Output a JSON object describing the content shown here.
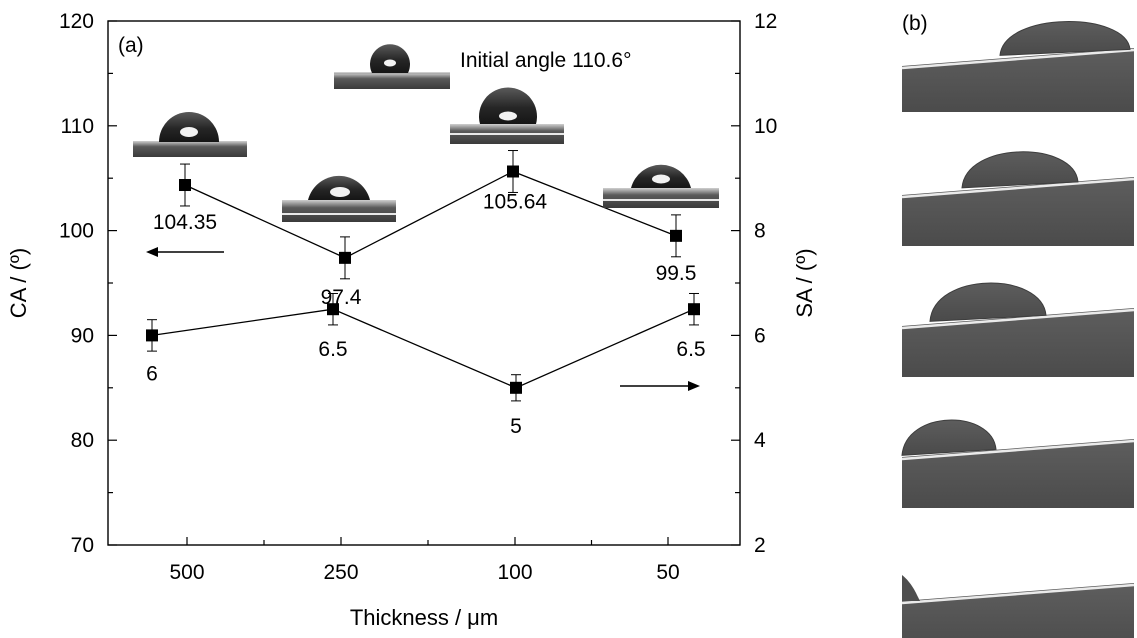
{
  "panels": {
    "a_label": "(a)",
    "b_label": "(b)"
  },
  "inset_note": "Initial angle 110.6°",
  "chart_data": {
    "type": "line",
    "xlabel": "Thickness / μm",
    "ylabel": "CA / (º)",
    "ylabel_right": "SA / (º)",
    "categories": [
      "500",
      "250",
      "100",
      "50"
    ],
    "ylim": [
      70,
      120
    ],
    "yticks": [
      70,
      80,
      90,
      100,
      110,
      120
    ],
    "ylim_right": [
      2,
      12
    ],
    "yticks_right": [
      2,
      4,
      6,
      8,
      10,
      12
    ],
    "grid": false,
    "series": [
      {
        "axis": "left",
        "x": [
          500,
          250,
          100,
          50
        ],
        "values": [
          104.35,
          97.4,
          105.64,
          99.5
        ],
        "error": [
          2.0,
          2.0,
          2.0,
          2.0
        ],
        "labels": [
          "104.35",
          "97.4",
          "105.64",
          "99.5"
        ],
        "arrow": "left"
      },
      {
        "axis": "right",
        "x": [
          500,
          250,
          100,
          50
        ],
        "values": [
          6,
          6.5,
          5,
          6.5
        ],
        "error": [
          0.3,
          0.3,
          0.25,
          0.3
        ],
        "labels": [
          "6",
          "6.5",
          "5",
          "6.5"
        ],
        "arrow": "right"
      }
    ]
  },
  "colors": {
    "ink": "#000000",
    "droplet_dark": "#2b2b2b",
    "droplet_highlight": "#f2f2f2",
    "photo_background": "#5c5c5c",
    "photo_top": "#ffffff"
  }
}
